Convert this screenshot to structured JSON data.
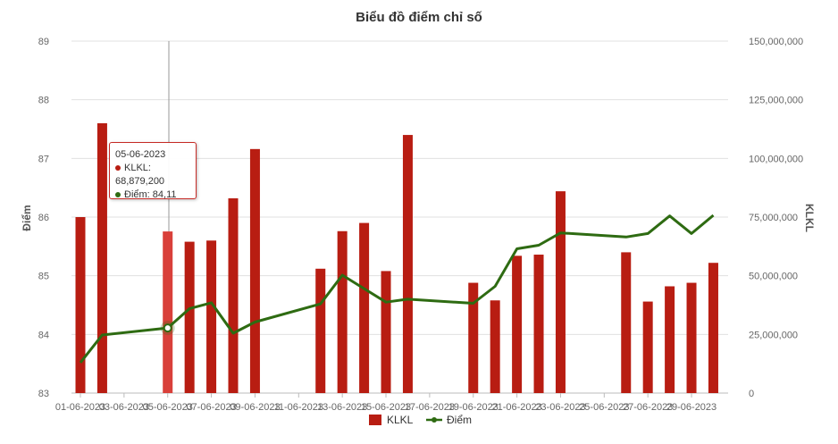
{
  "chart_data": {
    "type": "bar+line",
    "title": "Biểu đồ điểm chỉ số",
    "ylabel_left": "Điểm",
    "ylabel_right": "KLKL",
    "ylim_left": [
      83,
      89
    ],
    "ylim_right": [
      0,
      150000000
    ],
    "left_ticks": [
      "83",
      "84",
      "85",
      "86",
      "87",
      "88",
      "89"
    ],
    "right_ticks": [
      "0",
      "25,000,000",
      "50,000,000",
      "75,000,000",
      "100,000,000",
      "125,000,000",
      "150,000,000"
    ],
    "x_axis_labels": [
      "01-06-2023",
      "03-06-2023",
      "05-06-2023",
      "07-06-2023",
      "09-06-2023",
      "11-06-2023",
      "13-06-2023",
      "15-06-2023",
      "17-06-2023",
      "19-06-2023",
      "21-06-2023",
      "23-06-2023",
      "25-06-2023",
      "27-06-2023",
      "29-06-2023"
    ],
    "categories": [
      "01-06-2023",
      "02-06-2023",
      "05-06-2023",
      "06-06-2023",
      "07-06-2023",
      "08-06-2023",
      "09-06-2023",
      "12-06-2023",
      "13-06-2023",
      "14-06-2023",
      "15-06-2023",
      "16-06-2023",
      "19-06-2023",
      "20-06-2023",
      "21-06-2023",
      "22-06-2023",
      "23-06-2023",
      "26-06-2023",
      "27-06-2023",
      "28-06-2023",
      "29-06-2023",
      "30-06-2023"
    ],
    "series": [
      {
        "name": "KLKL",
        "type": "bar",
        "axis": "right",
        "color": "#b81d12",
        "values": [
          75000000,
          115000000,
          68879200,
          64500000,
          65000000,
          83000000,
          104000000,
          53000000,
          69000000,
          72500000,
          52000000,
          110000000,
          47000000,
          39500000,
          58500000,
          59000000,
          86000000,
          60000000,
          39000000,
          45500000,
          47000000,
          55500000
        ]
      },
      {
        "name": "Điểm",
        "type": "line",
        "axis": "left",
        "color": "#2e6b12",
        "values": [
          83.52,
          83.99,
          84.11,
          84.44,
          84.54,
          84.02,
          84.21,
          84.52,
          85.01,
          84.78,
          84.55,
          84.6,
          84.53,
          84.82,
          85.46,
          85.52,
          85.73,
          85.66,
          85.72,
          86.02,
          85.72,
          86.03
        ]
      }
    ],
    "legend": [
      "KLKL",
      "Điểm"
    ],
    "legend_position": "bottom",
    "grid": true,
    "highlighted_index": 2
  },
  "tooltip": {
    "date": "05-06-2023",
    "klkl_label": "KLKL: 68,879,200",
    "diem_label": "Điểm: 84,11"
  },
  "colors": {
    "bar": "#b81d12",
    "bar_highlight": "#d9403a",
    "line": "#2e6b12",
    "grid": "#e0e0e0"
  }
}
